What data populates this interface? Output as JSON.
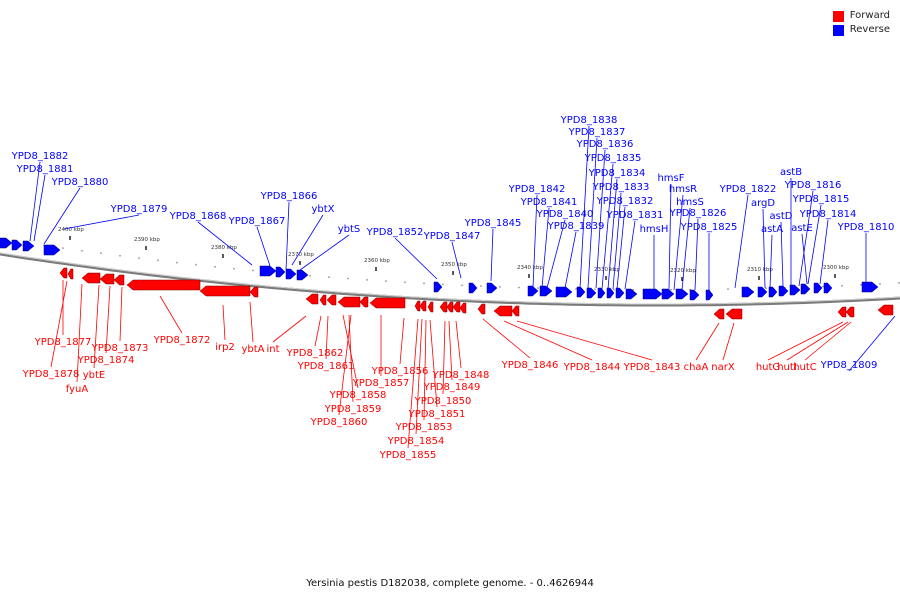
{
  "legend": {
    "forward_label": "Forward",
    "reverse_label": "Reverse",
    "forward_color": "#ff0000",
    "reverse_color": "#0000ff"
  },
  "caption": "Yersinia pestis D182038, complete genome. - 0..4626944",
  "scale_labels": [
    "2400 kbp",
    "2390 kbp",
    "2380 kbp",
    "2370 kbp",
    "2360 kbp",
    "2350 kbp",
    "2340 kbp",
    "2330 kbp",
    "2320 kbp",
    "2310 kbp",
    "2300 kbp"
  ],
  "reverse_genes": [
    "YPD8_1882",
    "YPD8_1881",
    "YPD8_1880",
    "YPD8_1879",
    "YPD8_1868",
    "YPD8_1867",
    "YPD8_1866",
    "ybtX",
    "ybtS",
    "YPD8_1852",
    "YPD8_1847",
    "YPD8_1845",
    "YPD8_1842",
    "YPD8_1841",
    "YPD8_1840",
    "YPD8_1839",
    "YPD8_1838",
    "YPD8_1837",
    "YPD8_1836",
    "YPD8_1835",
    "YPD8_1834",
    "YPD8_1833",
    "YPD8_1832",
    "YPD8_1831",
    "hmsH",
    "hmsF",
    "hmsR",
    "hmsS",
    "YPD8_1826",
    "YPD8_1825",
    "YPD8_1822",
    "argD",
    "astA",
    "astD",
    "astB",
    "YPD8_1816",
    "YPD8_1815",
    "astE",
    "YPD8_1814",
    "YPD8_1810",
    "YPD8_1809"
  ],
  "forward_genes": [
    "YPD8_1877",
    "YPD8_1878",
    "fyuA",
    "ybtE",
    "YPD8_1874",
    "YPD8_1873",
    "YPD8_1872",
    "irp2",
    "ybtA",
    "int",
    "YPD8_1862",
    "YPD8_1861",
    "YPD8_1858",
    "YPD8_1859",
    "YPD8_1860",
    "YPD8_1857",
    "YPD8_1856",
    "YPD8_1855",
    "YPD8_1854",
    "YPD8_1853",
    "YPD8_1851",
    "YPD8_1850",
    "YPD8_1849",
    "YPD8_1848",
    "YPD8_1846",
    "YPD8_1844",
    "YPD8_1843",
    "chaA",
    "narX",
    "hutG",
    "hutI",
    "hutC"
  ]
}
